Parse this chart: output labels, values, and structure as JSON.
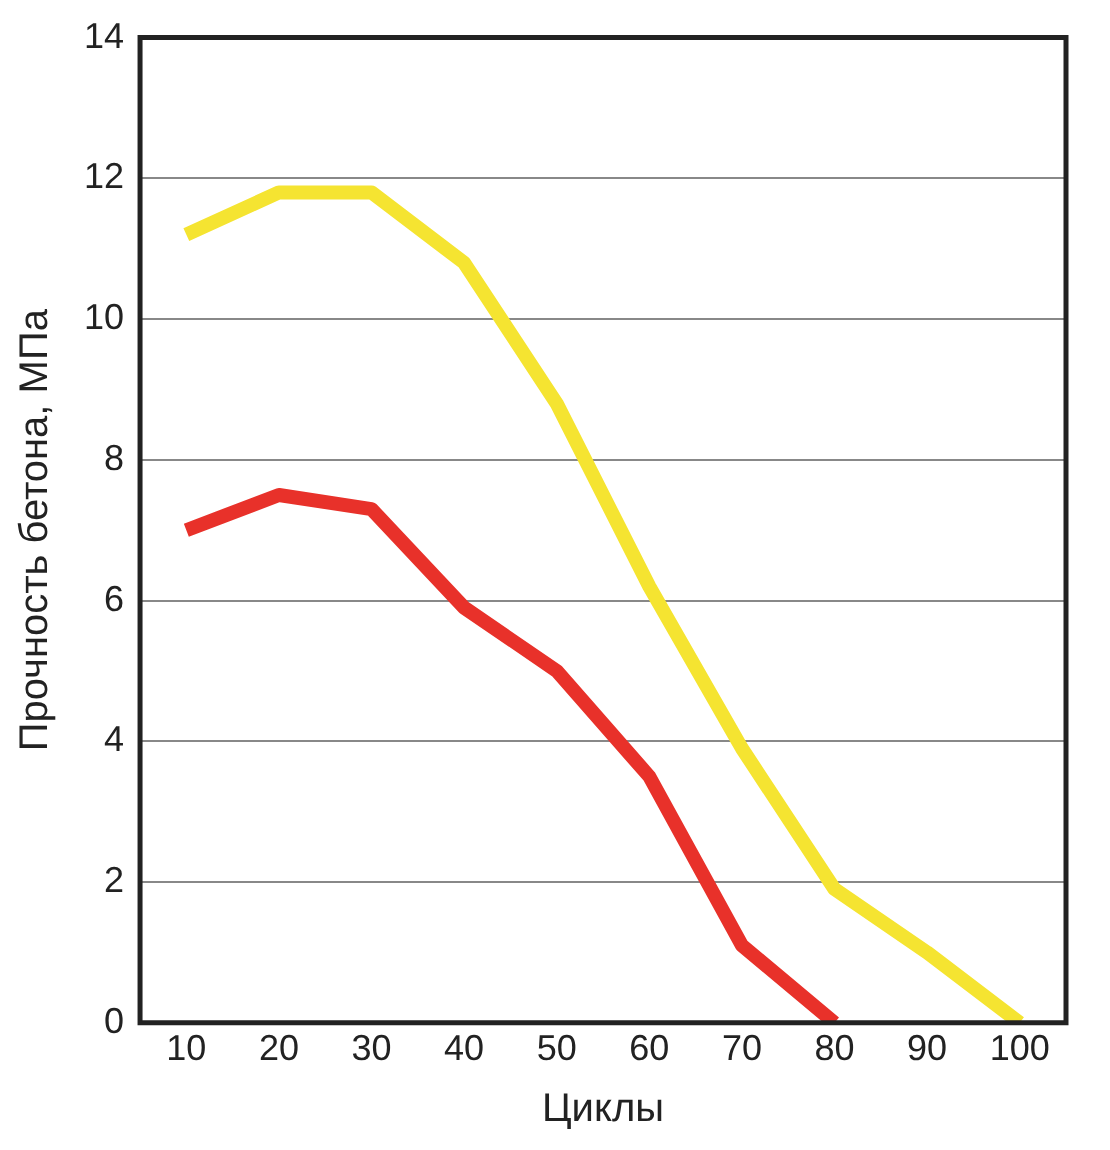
{
  "chart_data": {
    "type": "line",
    "xlabel": "Циклы",
    "ylabel": "Прочность бетона, МПа",
    "x": [
      10,
      20,
      30,
      40,
      50,
      60,
      70,
      80,
      90,
      100
    ],
    "series": [
      {
        "color": "#f5e431",
        "values": [
          11.2,
          11.8,
          11.8,
          10.8,
          8.8,
          6.2,
          3.9,
          1.9,
          1.0,
          0
        ]
      },
      {
        "color": "#e8312a",
        "values": [
          7.0,
          7.5,
          7.3,
          5.9,
          5.0,
          3.5,
          1.1,
          0,
          null,
          null
        ]
      }
    ],
    "xlim": [
      5,
      105
    ],
    "xticks": [
      10,
      20,
      30,
      40,
      50,
      60,
      70,
      80,
      90,
      100
    ],
    "ylim": [
      0,
      14
    ],
    "yticks": [
      0,
      2,
      4,
      6,
      8,
      10,
      12,
      14
    ],
    "grid": "y",
    "legend": false,
    "marker": "none",
    "line_style": "solid"
  }
}
